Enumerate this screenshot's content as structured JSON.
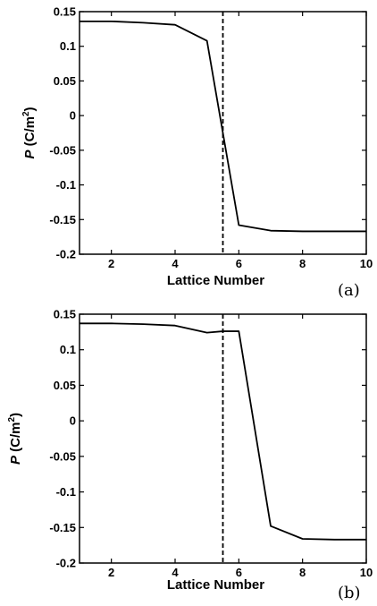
{
  "chart_data": [
    {
      "type": "line",
      "panel_label": "(a)",
      "xlabel": "Lattice Number",
      "ylabel_main": "P",
      "ylabel_unit": " (C/m",
      "ylabel_sup": "2",
      "ylabel_close": ")",
      "xlim": [
        1,
        10
      ],
      "ylim": [
        -0.2,
        0.15
      ],
      "xticks": [
        2,
        4,
        6,
        8,
        10
      ],
      "xtick_labels": [
        "2",
        "4",
        "6",
        "8",
        "10"
      ],
      "yticks": [
        0.15,
        0.1,
        0.05,
        0,
        -0.05,
        -0.1,
        -0.15,
        -0.2
      ],
      "ytick_labels": [
        "0.15",
        "0.1",
        "0.05",
        "0",
        "-0.05",
        "-0.1",
        "-0.15",
        "-0.2"
      ],
      "grid": false,
      "series": [
        {
          "x": [
            1,
            2,
            3,
            4,
            5,
            6,
            7,
            8,
            9,
            10
          ],
          "y": [
            0.136,
            0.136,
            0.134,
            0.131,
            0.108,
            -0.158,
            -0.166,
            -0.167,
            -0.167,
            -0.167
          ],
          "color": "#000000",
          "style": "solid"
        }
      ],
      "vline": {
        "x": 5.5,
        "style": "dashed",
        "color": "#000000"
      }
    },
    {
      "type": "line",
      "panel_label": "(b)",
      "xlabel": "Lattice Number",
      "ylabel_main": "P",
      "ylabel_unit": " (C/m",
      "ylabel_sup": "2",
      "ylabel_close": ")",
      "xlim": [
        1,
        10
      ],
      "ylim": [
        -0.2,
        0.15
      ],
      "xticks": [
        2,
        4,
        6,
        8,
        10
      ],
      "xtick_labels": [
        "2",
        "4",
        "6",
        "8",
        "10"
      ],
      "yticks": [
        0.15,
        0.1,
        0.05,
        0,
        -0.05,
        -0.1,
        -0.15,
        -0.2
      ],
      "ytick_labels": [
        "0.15",
        "0.1",
        "0.05",
        "0",
        "-0.05",
        "-0.1",
        "-0.15",
        "-0.2"
      ],
      "grid": false,
      "series": [
        {
          "x": [
            1,
            2,
            3,
            4,
            5,
            5.5,
            6,
            7,
            8,
            9,
            10
          ],
          "y": [
            0.137,
            0.137,
            0.136,
            0.134,
            0.124,
            0.126,
            0.126,
            -0.148,
            -0.166,
            -0.167,
            -0.167
          ],
          "color": "#000000",
          "style": "solid"
        }
      ],
      "vline": {
        "x": 5.5,
        "style": "dashed",
        "color": "#000000"
      }
    }
  ]
}
